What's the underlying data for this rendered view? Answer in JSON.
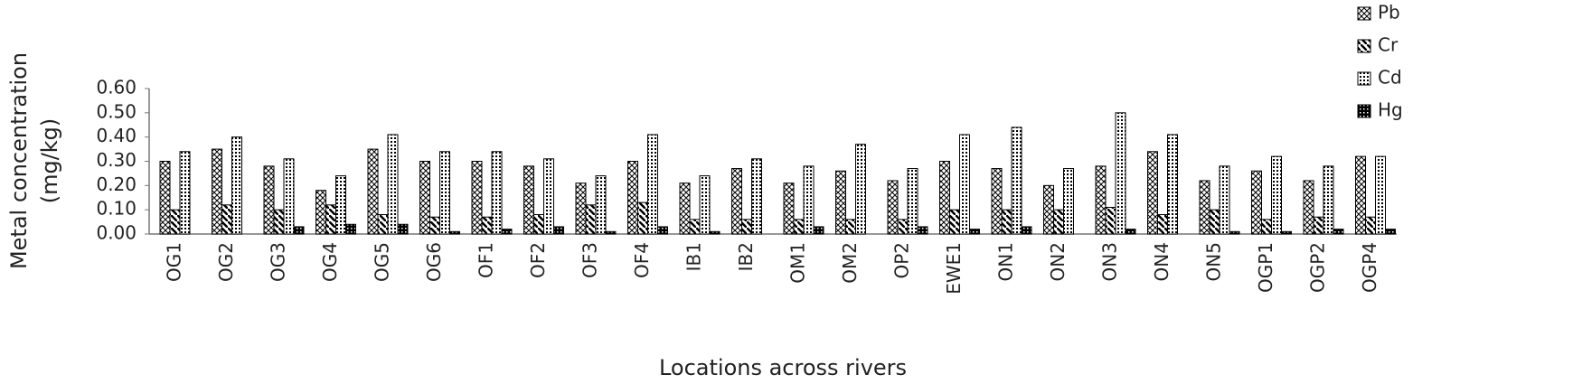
{
  "chart_data": {
    "type": "bar",
    "x_label": "Locations across rivers",
    "y_label": [
      "Metal concentration",
      "(mg/kg)"
    ],
    "categories": [
      "OG1",
      "OG2",
      "OG3",
      "OG4",
      "OG5",
      "OG6",
      "OF1",
      "OF2",
      "OF3",
      "OF4",
      "IB1",
      "IB2",
      "OM1",
      "OM2",
      "OP2",
      "EWE1",
      "ON1",
      "ON2",
      "ON3",
      "ON4",
      "ON5",
      "OGP1",
      "OGP2",
      "OGP4"
    ],
    "series": [
      {
        "name": "Pb",
        "color": "#000000",
        "pattern": "crosshatch",
        "values": [
          0.3,
          0.35,
          0.28,
          0.18,
          0.35,
          0.3,
          0.3,
          0.28,
          0.21,
          0.3,
          0.21,
          0.27,
          0.21,
          0.26,
          0.22,
          0.3,
          0.27,
          0.2,
          0.28,
          0.34,
          0.22,
          0.26,
          0.22,
          0.32
        ]
      },
      {
        "name": "Cr",
        "color": "#000000",
        "pattern": "diagonal",
        "values": [
          0.1,
          0.12,
          0.1,
          0.12,
          0.08,
          0.07,
          0.07,
          0.08,
          0.12,
          0.13,
          0.06,
          0.06,
          0.06,
          0.06,
          0.06,
          0.1,
          0.1,
          0.1,
          0.11,
          0.08,
          0.1,
          0.06,
          0.07,
          0.07
        ]
      },
      {
        "name": "Cd",
        "color": "#000000",
        "pattern": "dots",
        "values": [
          0.34,
          0.4,
          0.31,
          0.24,
          0.41,
          0.34,
          0.34,
          0.31,
          0.24,
          0.41,
          0.24,
          0.31,
          0.28,
          0.37,
          0.27,
          0.41,
          0.44,
          0.27,
          0.5,
          0.41,
          0.28,
          0.32,
          0.28,
          0.32
        ]
      },
      {
        "name": "Hg",
        "color": "#000000",
        "pattern": "checker",
        "values": [
          0.0,
          0.0,
          0.03,
          0.04,
          0.04,
          0.01,
          0.02,
          0.03,
          0.01,
          0.03,
          0.01,
          0.0,
          0.03,
          0.0,
          0.03,
          0.02,
          0.03,
          0.0,
          0.02,
          0.0,
          0.01,
          0.01,
          0.02,
          0.02
        ]
      }
    ],
    "ylim": [
      0,
      0.6
    ],
    "yticks": [
      {
        "value": 0,
        "label": "0.00"
      },
      {
        "value": 0.1,
        "label": "0.10"
      },
      {
        "value": 0.2,
        "label": "0.20"
      },
      {
        "value": 0.3,
        "label": "0.30"
      },
      {
        "value": 0.4,
        "label": "0.40"
      },
      {
        "value": 0.5,
        "label": "0.50"
      },
      {
        "value": 0.6,
        "label": "0.60"
      }
    ],
    "grid": false,
    "legend": "top-right"
  }
}
